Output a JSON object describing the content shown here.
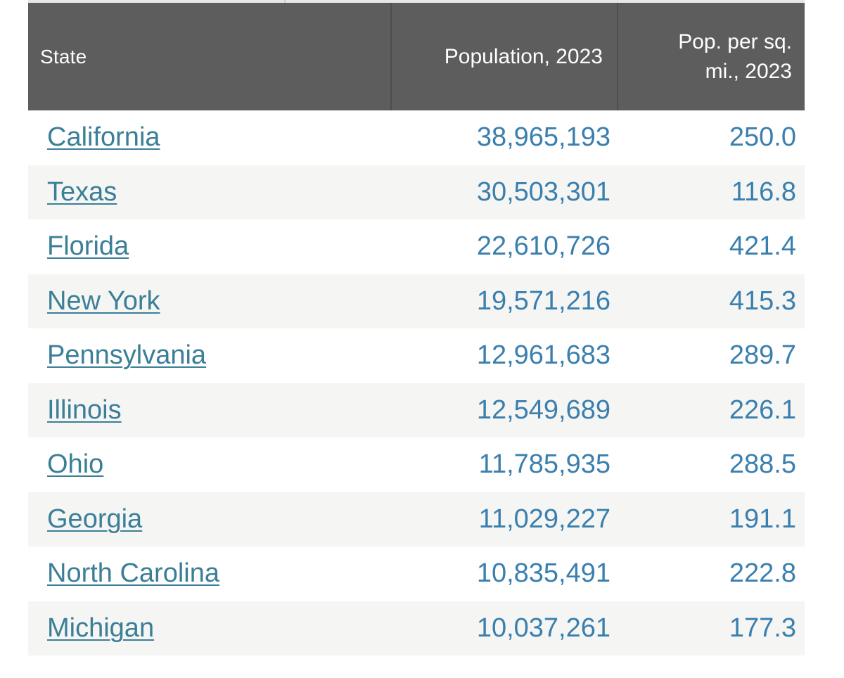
{
  "table": {
    "headers": {
      "state": "State",
      "population": "Population, 2023",
      "density_line1": "Pop. per sq.",
      "density_line2": "mi., 2023"
    },
    "rows": [
      {
        "state": "California",
        "population": "38,965,193",
        "density": "250.0"
      },
      {
        "state": "Texas",
        "population": "30,503,301",
        "density": "116.8"
      },
      {
        "state": "Florida",
        "population": "22,610,726",
        "density": "421.4"
      },
      {
        "state": "New York",
        "population": "19,571,216",
        "density": "415.3"
      },
      {
        "state": "Pennsylvania",
        "population": "12,961,683",
        "density": "289.7"
      },
      {
        "state": "Illinois",
        "population": "12,549,689",
        "density": "226.1"
      },
      {
        "state": "Ohio",
        "population": "11,785,935",
        "density": "288.5"
      },
      {
        "state": "Georgia",
        "population": "11,029,227",
        "density": "191.1"
      },
      {
        "state": "North Carolina",
        "population": "10,835,491",
        "density": "222.8"
      },
      {
        "state": "Michigan",
        "population": "10,037,261",
        "density": "177.3"
      }
    ]
  },
  "colors": {
    "header_bg": "#5d5d5d",
    "header_text": "#ffffff",
    "link": "#3b7f97",
    "number": "#3a7fae",
    "row_alt": "#f5f5f4"
  }
}
